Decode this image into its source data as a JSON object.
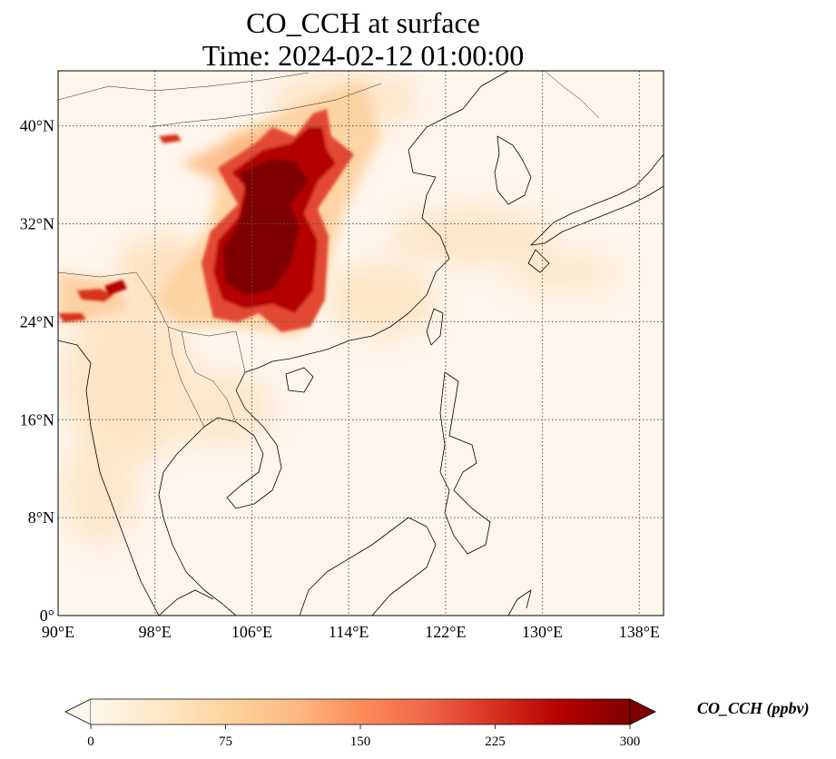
{
  "title": {
    "line1": "CO_CCH at surface",
    "line2": "Time: 2024-02-12 01:00:00"
  },
  "map": {
    "projection": "PlateCarree",
    "lon_range": [
      90,
      140
    ],
    "lat_range": [
      0,
      44.5
    ],
    "lon_ticks": [
      {
        "value": 90,
        "label": "90°E"
      },
      {
        "value": 98,
        "label": "98°E"
      },
      {
        "value": 106,
        "label": "106°E"
      },
      {
        "value": 114,
        "label": "114°E"
      },
      {
        "value": 122,
        "label": "122°E"
      },
      {
        "value": 130,
        "label": "130°E"
      },
      {
        "value": 138,
        "label": "138°E"
      }
    ],
    "lat_ticks": [
      {
        "value": 0,
        "label": "0°"
      },
      {
        "value": 8,
        "label": "8°N"
      },
      {
        "value": 16,
        "label": "16°N"
      },
      {
        "value": 24,
        "label": "24°N"
      },
      {
        "value": 32,
        "label": "32°N"
      },
      {
        "value": 40,
        "label": "40°N"
      }
    ],
    "gridlines": "dotted",
    "coastlines": true,
    "borders": true
  },
  "colorbar": {
    "label": "CO_CCH (ppbv)",
    "colormap": "OrRd",
    "min": 0,
    "max": 300,
    "extend": "both",
    "ticks": [
      {
        "value": 0,
        "label": "0"
      },
      {
        "value": 75,
        "label": "75"
      },
      {
        "value": 150,
        "label": "150"
      },
      {
        "value": 225,
        "label": "225"
      },
      {
        "value": 300,
        "label": "300"
      }
    ],
    "colors": [
      "#fff7ec",
      "#fee8c8",
      "#fdd49e",
      "#fdbb84",
      "#fc8d59",
      "#ef6548",
      "#d7301f",
      "#b30000",
      "#7f0000"
    ]
  }
}
